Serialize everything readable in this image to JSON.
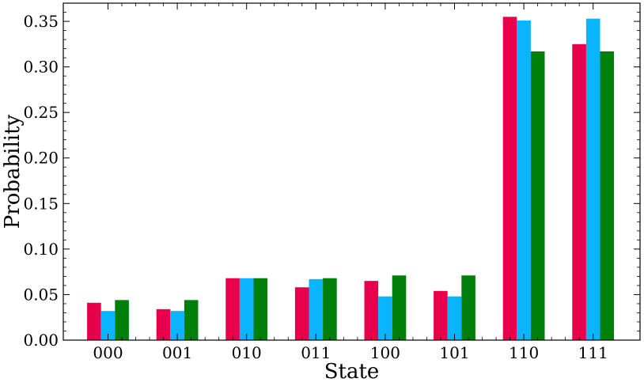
{
  "chart_data": {
    "type": "bar",
    "xlabel": "State",
    "ylabel": "Probability",
    "categories": [
      "000",
      "001",
      "010",
      "011",
      "100",
      "101",
      "110",
      "111"
    ],
    "ylim": [
      0,
      0.37
    ],
    "yticks": [
      "0.00",
      "0.05",
      "0.10",
      "0.15",
      "0.20",
      "0.25",
      "0.30",
      "0.35"
    ],
    "grid": false,
    "legend": "none",
    "series": [
      {
        "color": "#e8004b",
        "values": [
          0.041,
          0.034,
          0.068,
          0.058,
          0.065,
          0.054,
          0.355,
          0.325
        ]
      },
      {
        "color": "#0bb4ff",
        "values": [
          0.032,
          0.032,
          0.068,
          0.067,
          0.048,
          0.048,
          0.351,
          0.353
        ]
      },
      {
        "color": "#00800a",
        "values": [
          0.044,
          0.044,
          0.068,
          0.068,
          0.071,
          0.071,
          0.317,
          0.317
        ]
      }
    ]
  }
}
